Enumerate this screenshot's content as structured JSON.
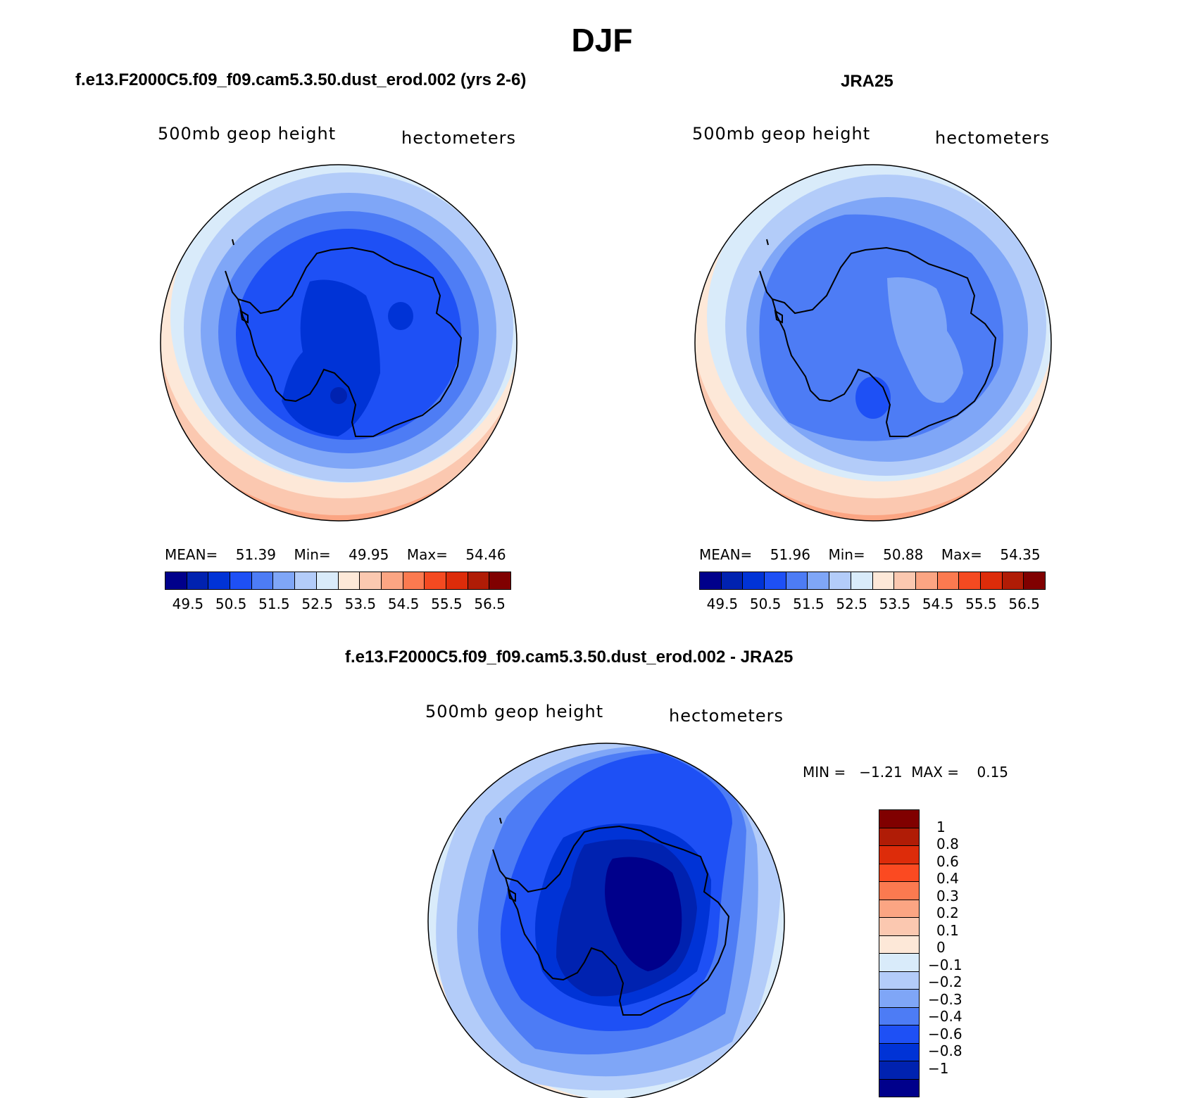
{
  "figure": {
    "title": "DJF"
  },
  "panels": [
    {
      "id": "model",
      "subtitle": "f.e13.F2000C5.f09_f09.cam5.3.50.dust_erod.002 (yrs 2-6)",
      "left_label": "500mb  geop  height",
      "right_label": "hectometers",
      "stats": {
        "mean_label": "MEAN=",
        "mean": "51.39",
        "min_label": "Min=",
        "min": "49.95",
        "max_label": "Max=",
        "max": "54.46"
      }
    },
    {
      "id": "obs",
      "subtitle": "JRA25",
      "left_label": "500mb  geop  height",
      "right_label": "hectometers",
      "stats": {
        "mean_label": "MEAN=",
        "mean": "51.96",
        "min_label": "Min=",
        "min": "50.88",
        "max_label": "Max=",
        "max": "54.35"
      }
    },
    {
      "id": "diff",
      "subtitle": "f.e13.F2000C5.f09_f09.cam5.3.50.dust_erod.002 - JRA25",
      "left_label": "500mb  geop  height",
      "right_label": "hectometers",
      "stats_text": "MIN =   −1.21  MAX =    0.15"
    }
  ],
  "colorbar_abs": {
    "colors": [
      "#00008b",
      "#0022b0",
      "#0033d6",
      "#1e50f5",
      "#4d7cf5",
      "#7fa6f7",
      "#b3ccf9",
      "#d9ebfa",
      "#fde8d8",
      "#fbc8b0",
      "#fba583",
      "#fb7a50",
      "#f44a21",
      "#dd2c0a",
      "#b01c06",
      "#800000"
    ],
    "tick_labels": [
      "49.5",
      "50.5",
      "51.5",
      "52.5",
      "53.5",
      "54.5",
      "55.5",
      "56.5"
    ]
  },
  "colorbar_diff": {
    "colors": [
      "#800000",
      "#b01c06",
      "#dd2c0a",
      "#fb4a21",
      "#fb7a50",
      "#fba583",
      "#fbc8b0",
      "#fde8d8",
      "#d9ebfa",
      "#b3ccf9",
      "#7fa6f7",
      "#4d7cf5",
      "#1e50f5",
      "#0033d6",
      "#0022b0",
      "#00008b"
    ],
    "tick_labels": [
      "1",
      "0.8",
      "0.6",
      "0.4",
      "0.3",
      "0.2",
      "0.1",
      "0",
      "−0.1",
      "−0.2",
      "−0.3",
      "−0.4",
      "−0.6",
      "−0.8",
      "−1"
    ]
  }
}
